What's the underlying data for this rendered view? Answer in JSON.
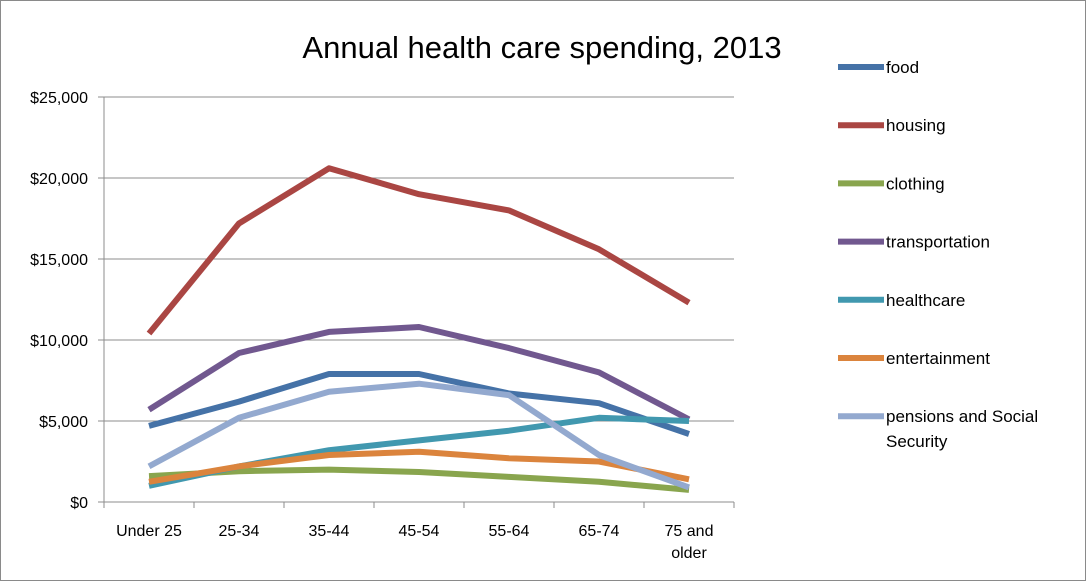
{
  "chart_data": {
    "type": "line",
    "title": "Annual health care spending, 2013",
    "xlabel": "",
    "ylabel": "",
    "ylim": [
      0,
      25000
    ],
    "yticks": [
      0,
      5000,
      10000,
      15000,
      20000,
      25000
    ],
    "ytick_labels": [
      "$0",
      "$5,000",
      "$10,000",
      "$15,000",
      "$20,000",
      "$25,000"
    ],
    "categories": [
      [
        "Under 25"
      ],
      [
        "25-34"
      ],
      [
        "35-44"
      ],
      [
        "45-54"
      ],
      [
        "55-64"
      ],
      [
        "65-74"
      ],
      [
        "75 and",
        "older"
      ]
    ],
    "grid": true,
    "legend_position": "right",
    "series": [
      {
        "name": "food",
        "color": "#4572a7",
        "legend_lines": [
          "food"
        ],
        "values": [
          4700,
          6200,
          7900,
          7900,
          6700,
          6100,
          4200
        ]
      },
      {
        "name": "housing",
        "color": "#aa4643",
        "legend_lines": [
          "housing"
        ],
        "values": [
          10400,
          17200,
          20600,
          19000,
          18000,
          15600,
          12300
        ]
      },
      {
        "name": "clothing",
        "color": "#89a54e",
        "legend_lines": [
          "clothing"
        ],
        "values": [
          1600,
          1900,
          2000,
          1850,
          1550,
          1250,
          750
        ]
      },
      {
        "name": "transportation",
        "color": "#71588f",
        "legend_lines": [
          "transportation"
        ],
        "values": [
          5700,
          9200,
          10500,
          10800,
          9500,
          8000,
          5100
        ]
      },
      {
        "name": "healthcare",
        "color": "#4198af",
        "legend_lines": [
          "healthcare"
        ],
        "values": [
          1000,
          2200,
          3200,
          3800,
          4400,
          5200,
          5000
        ]
      },
      {
        "name": "entertainment",
        "color": "#db843d",
        "legend_lines": [
          "entertainment"
        ],
        "values": [
          1250,
          2200,
          2900,
          3100,
          2700,
          2500,
          1400
        ]
      },
      {
        "name": "pensions and Social Security",
        "color": "#93a9cf",
        "legend_lines": [
          "pensions and Social",
          "Security"
        ],
        "values": [
          2200,
          5200,
          6800,
          7300,
          6600,
          2900,
          900
        ]
      }
    ]
  }
}
